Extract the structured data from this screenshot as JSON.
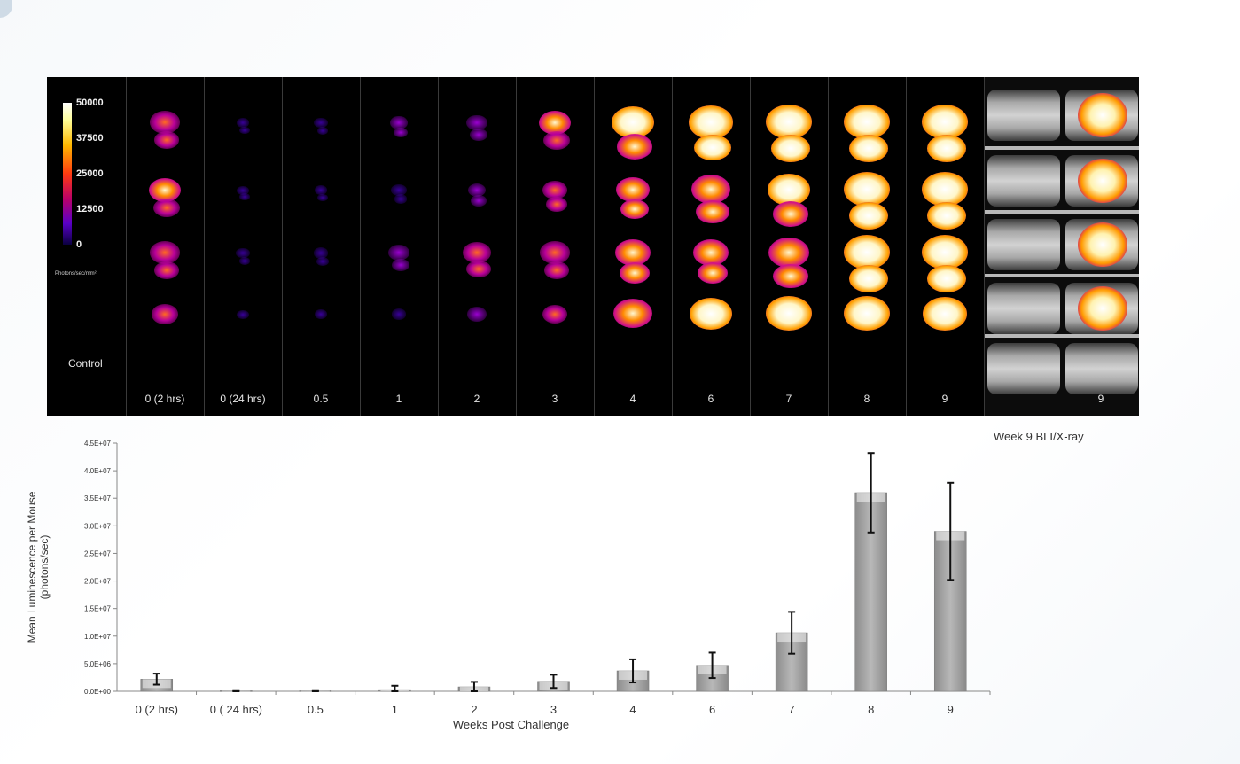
{
  "figure": {
    "scale_ticks": [
      "50000",
      "37500",
      "25000",
      "12500",
      "0"
    ],
    "scale_unit": "Photons/sec/mm²",
    "control_label": "Control",
    "time_labels": [
      "0 (2 hrs)",
      "0 (24 hrs)",
      "0.5",
      "1",
      "2",
      "3",
      "4",
      "6",
      "7",
      "8",
      "9"
    ],
    "xray_label": "9",
    "caption": "Week 9 BLI/X-ray"
  },
  "chart_data": {
    "type": "bar",
    "categories": [
      "0 (2 hrs)",
      "0 ( 24 hrs)",
      "0.5",
      "1",
      "2",
      "3",
      "4",
      "6",
      "7",
      "8",
      "9"
    ],
    "values": [
      2200000.0,
      100000.0,
      100000.0,
      300000.0,
      800000.0,
      1800000.0,
      3700000.0,
      4700000.0,
      10600000.0,
      36000000.0,
      29000000.0
    ],
    "errors": [
      1000000.0,
      100000.0,
      100000.0,
      700000.0,
      900000.0,
      1200000.0,
      2100000.0,
      2300000.0,
      3800000.0,
      7200000.0,
      8800000.0
    ],
    "xlabel": "Weeks Post Challenge",
    "ylabel": [
      "Mean Luminescence per Mouse",
      "(photons/sec)"
    ],
    "ylim": [
      0,
      45000000.0
    ],
    "yticks": [
      "0.0E+00",
      "5.0E+06",
      "1.0E+07",
      "1.5E+07",
      "2.0E+07",
      "2.5E+07",
      "3.0E+07",
      "3.5E+07",
      "4.0E+07",
      "4.5E+07"
    ],
    "bar_color": "#b8b8b8"
  },
  "intensity": [
    [
      0.55,
      0.05,
      0.08,
      0.18,
      0.28,
      0.6,
      0.9,
      0.95,
      1.0,
      1.0,
      1.0
    ],
    [
      0.6,
      0.03,
      0.05,
      0.14,
      0.22,
      0.4,
      0.65,
      0.8,
      0.9,
      1.0,
      1.0
    ],
    [
      0.55,
      0.08,
      0.12,
      0.3,
      0.5,
      0.55,
      0.7,
      0.72,
      0.85,
      1.0,
      1.0
    ],
    [
      0.45,
      0.03,
      0.05,
      0.12,
      0.25,
      0.4,
      0.8,
      0.9,
      1.0,
      1.0,
      0.95
    ]
  ]
}
